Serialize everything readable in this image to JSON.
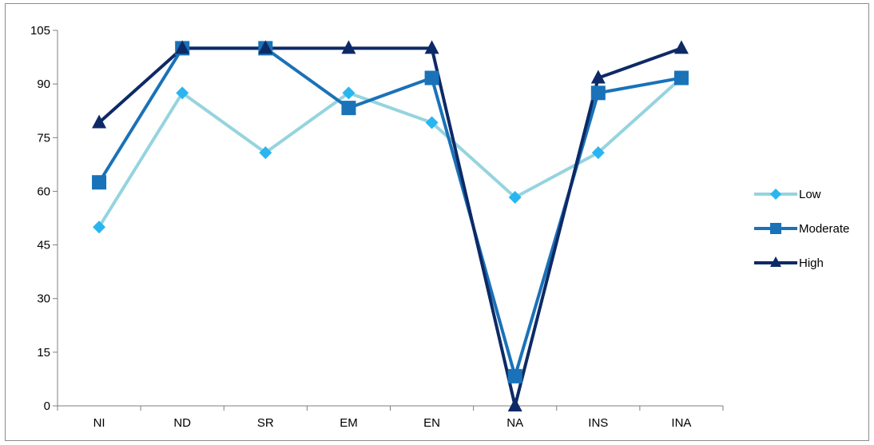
{
  "chart_data": {
    "type": "line",
    "title": "",
    "xlabel": "",
    "ylabel": "",
    "categories": [
      "NI",
      "ND",
      "SR",
      "EM",
      "EN",
      "NA",
      "INS",
      "INA"
    ],
    "ylim": [
      0,
      105
    ],
    "yticks": [
      "0",
      "15",
      "30",
      "45",
      "60",
      "75",
      "90",
      "105"
    ],
    "grid": false,
    "legend_position": "right",
    "series": [
      {
        "name": "Low",
        "marker": "diamond",
        "line_color": "#95d4df",
        "marker_color": "#29b6f0",
        "values": [
          50,
          87.5,
          70.8,
          87.5,
          79.2,
          58.3,
          70.8,
          91.7
        ]
      },
      {
        "name": "Moderate",
        "marker": "square",
        "line_color": "#1a72b8",
        "marker_color": "#1a72b8",
        "values": [
          62.5,
          100,
          100,
          83.3,
          91.7,
          8.3,
          87.5,
          91.7
        ]
      },
      {
        "name": "High",
        "marker": "triangle",
        "line_color": "#0d2a66",
        "marker_color": "#0d2a66",
        "values": [
          79.2,
          100,
          100,
          100,
          100,
          0,
          91.7,
          100
        ]
      }
    ]
  }
}
